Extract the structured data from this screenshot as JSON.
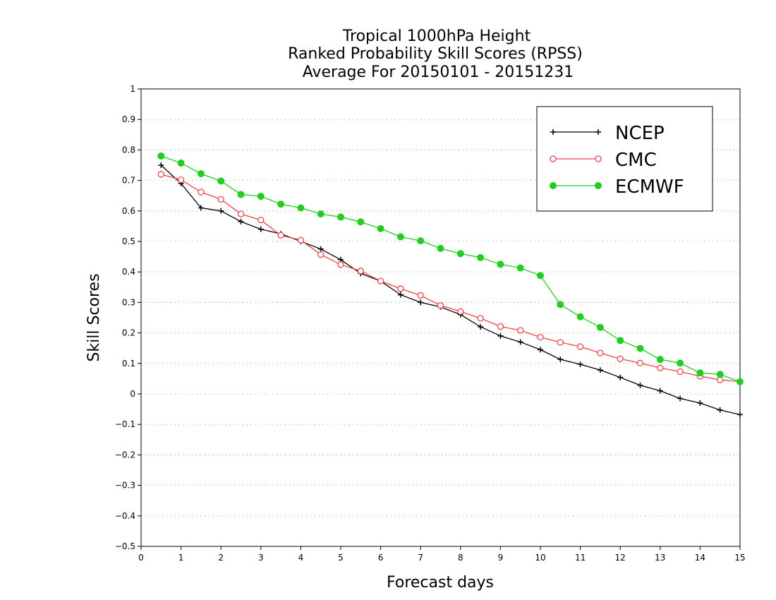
{
  "chart_data": {
    "type": "line",
    "title": [
      "Tropical 1000hPa Height",
      "Ranked Probability Skill Scores (RPSS)",
      "Average For 20150101 - 20151231"
    ],
    "xlabel": "Forecast days",
    "ylabel": "Skill Scores",
    "xlim": [
      0,
      15
    ],
    "ylim": [
      -0.5,
      1
    ],
    "x_ticks": [
      0,
      1,
      2,
      3,
      4,
      5,
      6,
      7,
      8,
      9,
      10,
      11,
      12,
      13,
      14,
      15
    ],
    "y_ticks": [
      -0.5,
      -0.4,
      -0.3,
      -0.2,
      -0.1,
      0,
      0.1,
      0.2,
      0.3,
      0.4,
      0.5,
      0.6,
      0.7,
      0.8,
      0.9,
      1
    ],
    "y_tick_labels": [
      "−0.5",
      "−0.4",
      "−0.3",
      "−0.2",
      "−0.1",
      "0",
      "0.1",
      "0.2",
      "0.3",
      "0.4",
      "0.5",
      "0.6",
      "0.7",
      "0.8",
      "0.9",
      "1"
    ],
    "grid": "horizontal dotted",
    "legend_position": "top-right",
    "x": [
      0.5,
      1,
      1.5,
      2,
      2.5,
      3,
      3.5,
      4,
      4.5,
      5,
      5.5,
      6,
      6.5,
      7,
      7.5,
      8,
      8.5,
      9,
      9.5,
      10,
      10.5,
      11,
      11.5,
      12,
      12.5,
      13,
      13.5,
      14,
      14.5,
      15
    ],
    "series": [
      {
        "name": "NCEP",
        "color": "#000000",
        "marker": "plus",
        "values": [
          0.75,
          0.69,
          0.61,
          0.6,
          0.565,
          0.54,
          0.525,
          0.5,
          0.475,
          0.44,
          0.395,
          0.37,
          0.325,
          0.3,
          0.285,
          0.26,
          0.22,
          0.19,
          0.17,
          0.145,
          0.113,
          0.097,
          0.078,
          0.054,
          0.028,
          0.01,
          -0.015,
          -0.03,
          -0.053,
          -0.068
        ]
      },
      {
        "name": "CMC",
        "color": "#e8454a",
        "marker": "open-circle",
        "values": [
          0.72,
          0.702,
          0.662,
          0.638,
          0.59,
          0.57,
          0.52,
          0.504,
          0.457,
          0.424,
          0.403,
          0.37,
          0.345,
          0.323,
          0.29,
          0.27,
          0.248,
          0.221,
          0.208,
          0.186,
          0.169,
          0.155,
          0.134,
          0.115,
          0.101,
          0.085,
          0.073,
          0.058,
          0.046,
          0.04
        ]
      },
      {
        "name": "ECMWF",
        "color": "#22cc22",
        "marker": "filled-circle",
        "values": [
          0.78,
          0.757,
          0.722,
          0.698,
          0.654,
          0.648,
          0.622,
          0.61,
          0.59,
          0.58,
          0.564,
          0.542,
          0.515,
          0.502,
          0.477,
          0.46,
          0.447,
          0.425,
          0.413,
          0.388,
          0.293,
          0.253,
          0.218,
          0.175,
          0.149,
          0.113,
          0.101,
          0.069,
          0.064,
          0.04
        ]
      }
    ]
  }
}
